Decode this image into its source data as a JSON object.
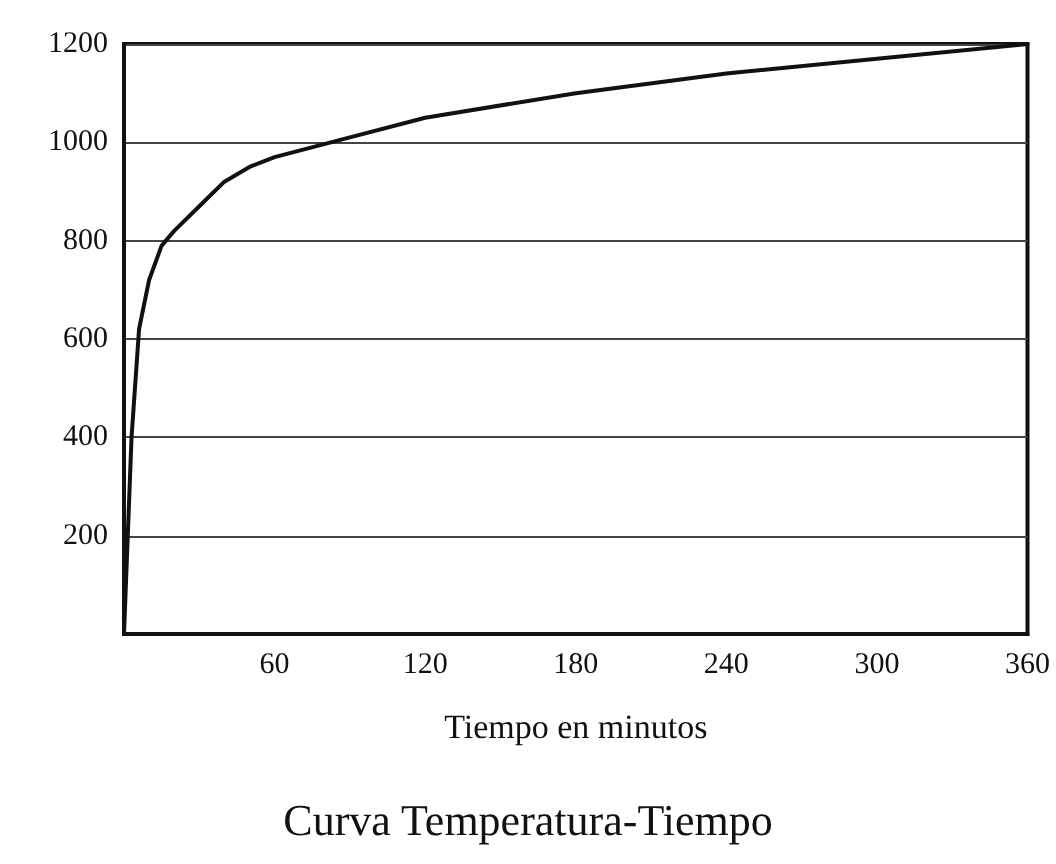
{
  "chart_data": {
    "type": "line",
    "title": "Curva Temperatura-Tiempo",
    "xlabel": "Tiempo en minutos",
    "x": [
      0,
      3,
      6,
      10,
      15,
      20,
      30,
      40,
      50,
      60,
      90,
      120,
      180,
      240,
      300,
      360
    ],
    "series": [
      {
        "color": "#111111",
        "values": [
          0,
          400,
          620,
          720,
          790,
          820,
          870,
          920,
          950,
          970,
          1010,
          1050,
          1100,
          1140,
          1170,
          1200
        ]
      }
    ],
    "xlim": [
      0,
      360
    ],
    "xticks": [
      60,
      120,
      180,
      240,
      300,
      360
    ],
    "ylim": [
      0,
      1200
    ],
    "yticks": [
      200,
      400,
      600,
      800,
      1000,
      1200
    ],
    "grid": "y",
    "legend": false,
    "marker": "none",
    "line_style": "solid"
  }
}
